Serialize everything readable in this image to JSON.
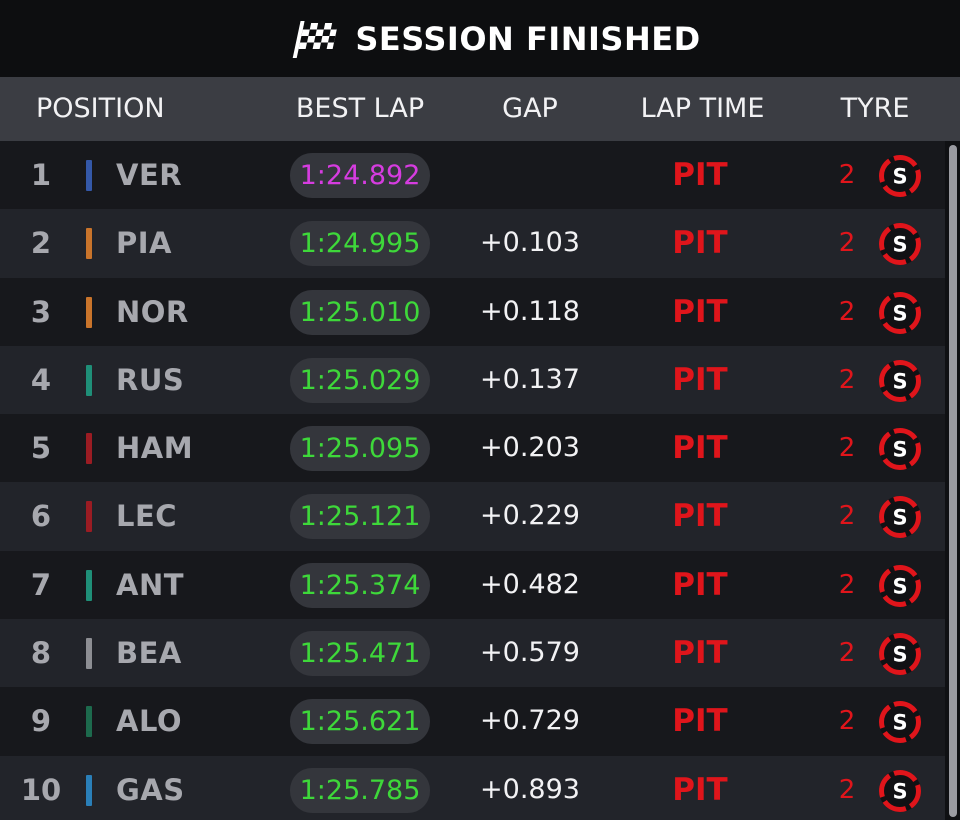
{
  "title": "SESSION FINISHED",
  "columns": {
    "position": "POSITION",
    "best_lap": "BEST LAP",
    "gap": "GAP",
    "lap_time": "LAP TIME",
    "tyre": "TYRE"
  },
  "colors": {
    "fastest_lap": "#d63ce0",
    "best_lap": "#3ed83a",
    "pit": "#e0151b",
    "soft_tyre": "#e0151b"
  },
  "rows": [
    {
      "pos": "1",
      "driver": "VER",
      "team_color": "#3458a8",
      "best": "1:24.892",
      "fastest": true,
      "gap": "",
      "lap": "PIT",
      "laps": "2",
      "tyre": "S",
      "tyre_icon": "soft-tyre-icon"
    },
    {
      "pos": "2",
      "driver": "PIA",
      "team_color": "#c9742b",
      "best": "1:24.995",
      "fastest": false,
      "gap": "+0.103",
      "lap": "PIT",
      "laps": "2",
      "tyre": "S",
      "tyre_icon": "soft-tyre-icon"
    },
    {
      "pos": "3",
      "driver": "NOR",
      "team_color": "#c9742b",
      "best": "1:25.010",
      "fastest": false,
      "gap": "+0.118",
      "lap": "PIT",
      "laps": "2",
      "tyre": "S",
      "tyre_icon": "soft-tyre-icon"
    },
    {
      "pos": "4",
      "driver": "RUS",
      "team_color": "#1f8f78",
      "best": "1:25.029",
      "fastest": false,
      "gap": "+0.137",
      "lap": "PIT",
      "laps": "2",
      "tyre": "S",
      "tyre_icon": "soft-tyre-icon"
    },
    {
      "pos": "5",
      "driver": "HAM",
      "team_color": "#9b1c23",
      "best": "1:25.095",
      "fastest": false,
      "gap": "+0.203",
      "lap": "PIT",
      "laps": "2",
      "tyre": "S",
      "tyre_icon": "soft-tyre-icon"
    },
    {
      "pos": "6",
      "driver": "LEC",
      "team_color": "#9b1c23",
      "best": "1:25.121",
      "fastest": false,
      "gap": "+0.229",
      "lap": "PIT",
      "laps": "2",
      "tyre": "S",
      "tyre_icon": "soft-tyre-icon"
    },
    {
      "pos": "7",
      "driver": "ANT",
      "team_color": "#1f8f78",
      "best": "1:25.374",
      "fastest": false,
      "gap": "+0.482",
      "lap": "PIT",
      "laps": "2",
      "tyre": "S",
      "tyre_icon": "soft-tyre-icon"
    },
    {
      "pos": "8",
      "driver": "BEA",
      "team_color": "#8d8e93",
      "best": "1:25.471",
      "fastest": false,
      "gap": "+0.579",
      "lap": "PIT",
      "laps": "2",
      "tyre": "S",
      "tyre_icon": "soft-tyre-icon"
    },
    {
      "pos": "9",
      "driver": "ALO",
      "team_color": "#1d6a4d",
      "best": "1:25.621",
      "fastest": false,
      "gap": "+0.729",
      "lap": "PIT",
      "laps": "2",
      "tyre": "S",
      "tyre_icon": "soft-tyre-icon"
    },
    {
      "pos": "10",
      "driver": "GAS",
      "team_color": "#2a7fb8",
      "best": "1:25.785",
      "fastest": false,
      "gap": "+0.893",
      "lap": "PIT",
      "laps": "2",
      "tyre": "S",
      "tyre_icon": "soft-tyre-icon"
    }
  ]
}
